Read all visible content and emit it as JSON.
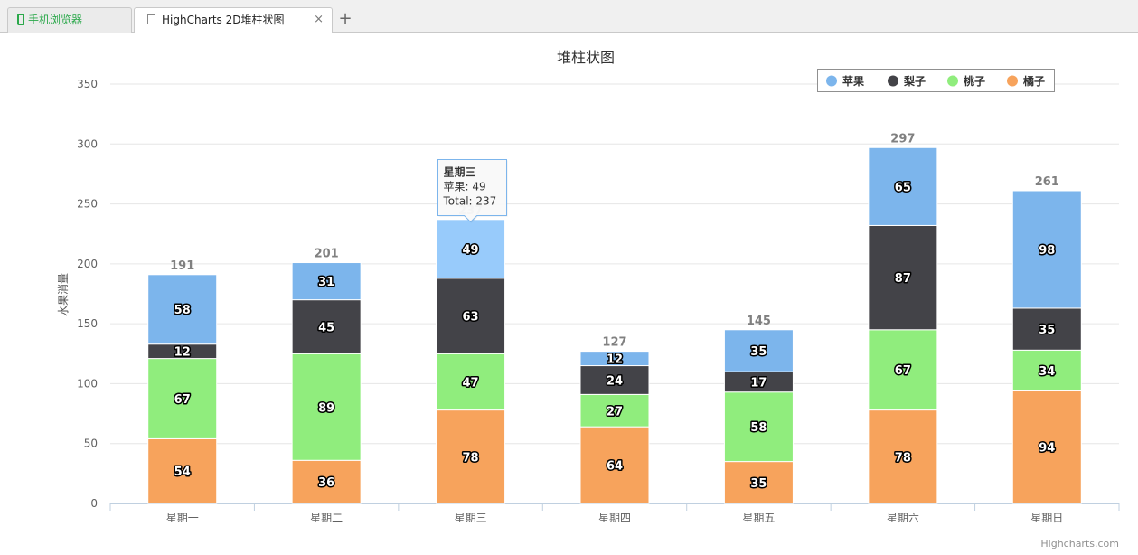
{
  "browser": {
    "tabs": [
      {
        "label": "手机浏览器",
        "icon": "phone-icon"
      },
      {
        "label": "HighCharts 2D堆柱状图",
        "icon": "page-icon",
        "close": "×"
      }
    ],
    "new_tab": "+"
  },
  "chart_data": {
    "type": "bar",
    "stacked": true,
    "title": "堆柱状图",
    "ylabel": "水果消量",
    "xlabel": "",
    "ylim": [
      0,
      350
    ],
    "yticks": [
      0,
      50,
      100,
      150,
      200,
      250,
      300,
      350
    ],
    "categories": [
      "星期一",
      "星期二",
      "星期三",
      "星期四",
      "星期五",
      "星期六",
      "星期日"
    ],
    "series": [
      {
        "name": "橘子",
        "color": "#f7a35c",
        "values": [
          54,
          36,
          78,
          64,
          35,
          78,
          94
        ]
      },
      {
        "name": "桃子",
        "color": "#90ed7d",
        "values": [
          67,
          89,
          47,
          27,
          58,
          67,
          34
        ]
      },
      {
        "name": "梨子",
        "color": "#434348",
        "values": [
          12,
          45,
          63,
          24,
          17,
          87,
          35
        ]
      },
      {
        "name": "苹果",
        "color": "#7cb5ec",
        "values": [
          58,
          31,
          49,
          12,
          35,
          65,
          98
        ]
      }
    ],
    "legend": {
      "position": "top-right",
      "order": [
        "苹果",
        "梨子",
        "桃子",
        "橘子"
      ]
    },
    "totals": [
      191,
      201,
      237,
      127,
      145,
      297,
      261
    ],
    "grid": true,
    "tooltip": {
      "title": "星期三",
      "series_line": "苹果: 49",
      "total_line": "Total: 237",
      "category_index": 2
    }
  },
  "credit": "Highcharts.com"
}
